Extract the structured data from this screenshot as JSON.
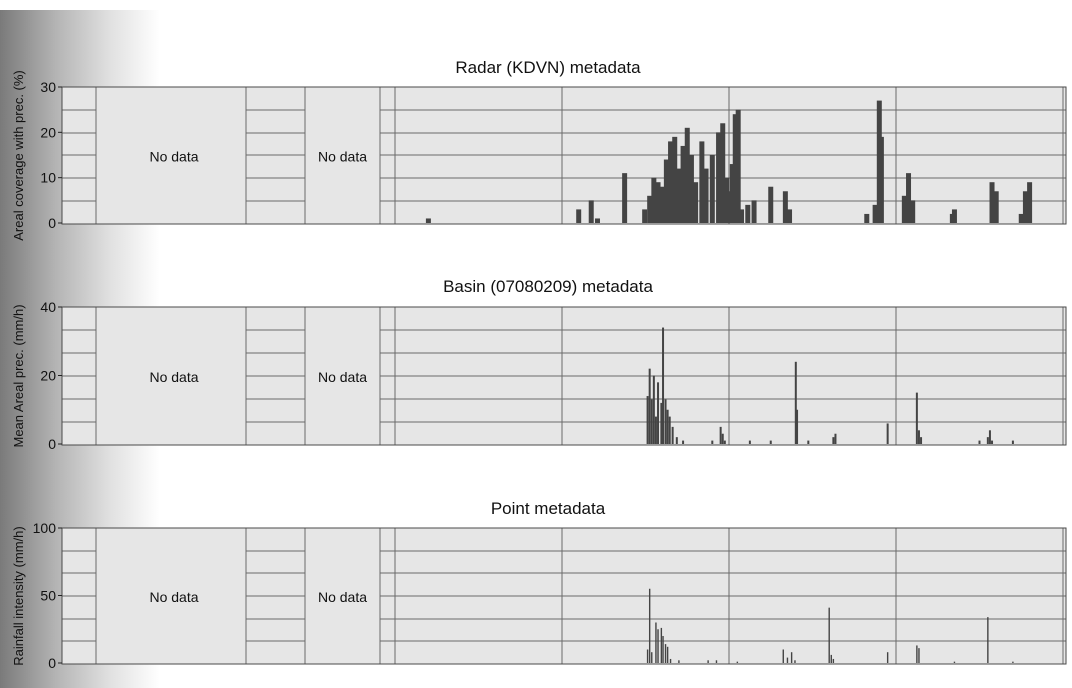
{
  "chart_data": [
    {
      "type": "bar",
      "title": "Radar (KDVN) metadata",
      "ylabel": "Areal coverage with prec. (%)",
      "ylim": [
        0,
        30
      ],
      "yticks": [
        "0",
        "10",
        "20",
        "30"
      ],
      "no_data_labels": [
        "No data",
        "No data"
      ],
      "grid": true,
      "series": [
        {
          "values": [
            [
              0.08,
              1
            ],
            [
              0.44,
              3
            ],
            [
              0.47,
              5
            ],
            [
              0.485,
              1
            ],
            [
              0.55,
              11
            ],
            [
              0.598,
              3
            ],
            [
              0.61,
              6
            ],
            [
              0.62,
              10
            ],
            [
              0.63,
              9
            ],
            [
              0.64,
              8
            ],
            [
              0.65,
              14
            ],
            [
              0.66,
              18
            ],
            [
              0.67,
              19
            ],
            [
              0.68,
              12
            ],
            [
              0.69,
              17
            ],
            [
              0.7,
              21
            ],
            [
              0.71,
              15
            ],
            [
              0.72,
              9
            ],
            [
              0.735,
              18
            ],
            [
              0.745,
              12
            ],
            [
              0.76,
              15
            ],
            [
              0.775,
              20
            ],
            [
              0.785,
              22
            ],
            [
              0.795,
              10
            ],
            [
              0.8,
              7
            ],
            [
              0.808,
              13
            ],
            [
              0.815,
              24
            ],
            [
              0.822,
              25
            ],
            [
              0.83,
              3
            ],
            [
              0.845,
              4
            ],
            [
              0.86,
              5
            ],
            [
              0.9,
              8
            ],
            [
              0.935,
              7
            ],
            [
              0.945,
              3
            ],
            [
              1.13,
              2
            ],
            [
              1.15,
              4
            ],
            [
              1.16,
              27
            ],
            [
              1.165,
              19
            ],
            [
              1.22,
              6
            ],
            [
              1.23,
              11
            ],
            [
              1.24,
              5
            ],
            [
              1.335,
              2
            ],
            [
              1.34,
              3
            ],
            [
              1.43,
              9
            ],
            [
              1.44,
              7
            ],
            [
              1.5,
              2
            ],
            [
              1.51,
              7
            ],
            [
              1.52,
              9
            ]
          ]
        }
      ]
    },
    {
      "type": "bar",
      "title": "Basin (07080209) metadata",
      "ylabel": "Mean Areal prec. (mm/h)",
      "ylim": [
        0,
        40
      ],
      "yticks": [
        "0",
        "20",
        "40"
      ],
      "no_data_labels": [
        "No data",
        "No data"
      ],
      "grid": true,
      "series": [
        {
          "values": [
            [
              0.605,
              14
            ],
            [
              0.61,
              22
            ],
            [
              0.615,
              13
            ],
            [
              0.62,
              20
            ],
            [
              0.625,
              8
            ],
            [
              0.63,
              18
            ],
            [
              0.638,
              12
            ],
            [
              0.642,
              34
            ],
            [
              0.648,
              13
            ],
            [
              0.653,
              10
            ],
            [
              0.658,
              8
            ],
            [
              0.665,
              5
            ],
            [
              0.675,
              2
            ],
            [
              0.69,
              1
            ],
            [
              0.76,
              1
            ],
            [
              0.78,
              5
            ],
            [
              0.785,
              3
            ],
            [
              0.79,
              1
            ],
            [
              0.85,
              1
            ],
            [
              0.9,
              1
            ],
            [
              0.96,
              24
            ],
            [
              0.963,
              10
            ],
            [
              0.99,
              1
            ],
            [
              1.05,
              2
            ],
            [
              1.055,
              3
            ],
            [
              1.18,
              6
            ],
            [
              1.25,
              15
            ],
            [
              1.255,
              4
            ],
            [
              1.26,
              2
            ],
            [
              1.4,
              1
            ],
            [
              1.42,
              2
            ],
            [
              1.425,
              4
            ],
            [
              1.43,
              1
            ],
            [
              1.48,
              1
            ]
          ]
        }
      ]
    },
    {
      "type": "bar",
      "title": "Point metadata",
      "ylabel": "Rainfall intensity (mm/h)",
      "ylim": [
        0,
        100
      ],
      "yticks": [
        "0",
        "50",
        "100"
      ],
      "no_data_labels": [
        "No data",
        "No data"
      ],
      "grid": true,
      "series": [
        {
          "values": [
            [
              0.605,
              10
            ],
            [
              0.61,
              55
            ],
            [
              0.615,
              8
            ],
            [
              0.625,
              30
            ],
            [
              0.63,
              25
            ],
            [
              0.638,
              26
            ],
            [
              0.642,
              20
            ],
            [
              0.648,
              14
            ],
            [
              0.653,
              12
            ],
            [
              0.66,
              3
            ],
            [
              0.68,
              2
            ],
            [
              0.75,
              2
            ],
            [
              0.77,
              2
            ],
            [
              0.82,
              1
            ],
            [
              0.93,
              10
            ],
            [
              0.94,
              4
            ],
            [
              0.95,
              8
            ],
            [
              0.958,
              2
            ],
            [
              1.04,
              41
            ],
            [
              1.045,
              6
            ],
            [
              1.05,
              3
            ],
            [
              1.18,
              8
            ],
            [
              1.25,
              13
            ],
            [
              1.255,
              11
            ],
            [
              1.34,
              1
            ],
            [
              1.42,
              34
            ],
            [
              1.48,
              1
            ]
          ]
        }
      ]
    }
  ]
}
